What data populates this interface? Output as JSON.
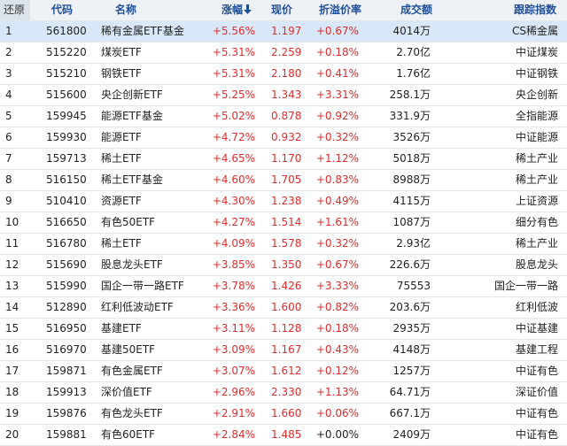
{
  "table": {
    "header": [
      "还原",
      "代码",
      "名称",
      "涨幅",
      "现价",
      "折溢价率",
      "成交额",
      "跟踪指数"
    ],
    "rows": [
      [
        "1",
        "561800",
        "稀有金属ETF基金",
        "+5.56%",
        "1.197",
        "+0.67%",
        "4014万",
        "CS稀金属"
      ],
      [
        "2",
        "515220",
        "煤炭ETF",
        "+5.31%",
        "2.259",
        "+0.18%",
        "2.70亿",
        "中证煤炭"
      ],
      [
        "3",
        "515210",
        "钢铁ETF",
        "+5.31%",
        "2.180",
        "+0.41%",
        "1.76亿",
        "中证钢铁"
      ],
      [
        "4",
        "515600",
        "央企创新ETF",
        "+5.25%",
        "1.343",
        "+3.31%",
        "258.1万",
        "央企创新"
      ],
      [
        "5",
        "159945",
        "能源ETF基金",
        "+5.02%",
        "0.878",
        "+0.92%",
        "331.9万",
        "全指能源"
      ],
      [
        "6",
        "159930",
        "能源ETF",
        "+4.72%",
        "0.932",
        "+0.32%",
        "3526万",
        "中证能源"
      ],
      [
        "7",
        "159713",
        "稀土ETF",
        "+4.65%",
        "1.170",
        "+1.12%",
        "5018万",
        "稀土产业"
      ],
      [
        "8",
        "516150",
        "稀土ETF基金",
        "+4.60%",
        "1.705",
        "+0.83%",
        "8988万",
        "稀土产业"
      ],
      [
        "9",
        "510410",
        "资源ETF",
        "+4.30%",
        "1.238",
        "+0.49%",
        "4115万",
        "上证资源"
      ],
      [
        "10",
        "516650",
        "有色50ETF",
        "+4.27%",
        "1.514",
        "+1.61%",
        "1087万",
        "细分有色"
      ],
      [
        "11",
        "516780",
        "稀土ETF",
        "+4.09%",
        "1.578",
        "+0.32%",
        "2.93亿",
        "稀土产业"
      ],
      [
        "12",
        "515690",
        "股息龙头ETF",
        "+3.85%",
        "1.350",
        "+0.67%",
        "226.6万",
        "股息龙头"
      ],
      [
        "13",
        "515990",
        "国企一带一路ETF",
        "+3.78%",
        "1.426",
        "+3.33%",
        "75553",
        "国企一带一路"
      ],
      [
        "14",
        "512890",
        "红利低波动ETF",
        "+3.36%",
        "1.600",
        "+0.82%",
        "203.6万",
        "红利低波"
      ],
      [
        "15",
        "516950",
        "基建ETF",
        "+3.11%",
        "1.128",
        "+0.18%",
        "2935万",
        "中证基建"
      ],
      [
        "16",
        "516970",
        "基建50ETF",
        "+3.09%",
        "1.167",
        "+0.43%",
        "4148万",
        "基建工程"
      ],
      [
        "17",
        "159871",
        "有色金属ETF",
        "+3.07%",
        "1.612",
        "+0.12%",
        "1257万",
        "中证有色"
      ],
      [
        "18",
        "159913",
        "深价值ETF",
        "+2.96%",
        "2.330",
        "+1.13%",
        "64.71万",
        "深证价值"
      ],
      [
        "19",
        "159876",
        "有色龙头ETF",
        "+2.91%",
        "1.660",
        "+0.06%",
        "667.1万",
        "中证有色"
      ],
      [
        "20",
        "159881",
        "有色60ETF",
        "+2.84%",
        "1.485",
        "+0.00%",
        "2409万",
        "中证有色"
      ]
    ]
  }
}
